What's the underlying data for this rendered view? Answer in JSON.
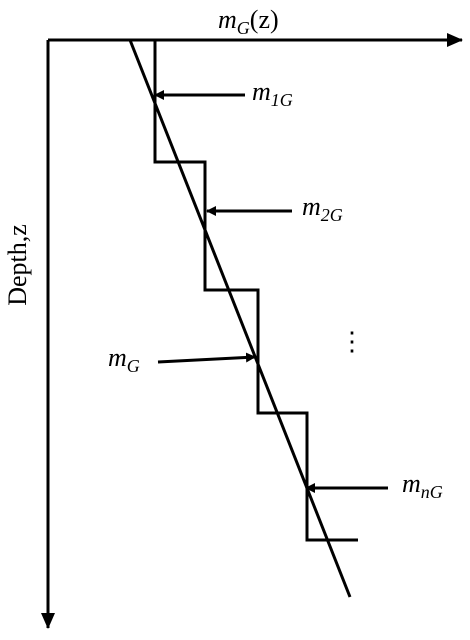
{
  "axes": {
    "x_label": {
      "base": "m",
      "sub": "G",
      "suffix": "(z)"
    },
    "y_label": "Depth,z"
  },
  "labels": [
    {
      "base": "m",
      "sub": "1G"
    },
    {
      "base": "m",
      "sub": "2G"
    },
    {
      "base": "m",
      "sub": "G"
    },
    {
      "base": "m",
      "sub": "nG"
    }
  ],
  "ellipsis": "⋮"
}
